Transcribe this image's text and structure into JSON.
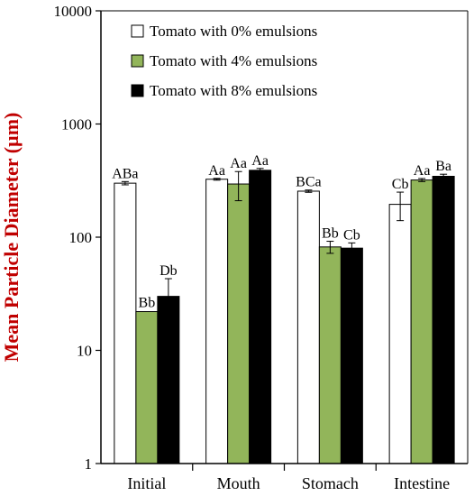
{
  "chart_data": {
    "type": "bar",
    "ylabel": "Mean Particle Diameter (µm)",
    "yscale": "log",
    "ylim": [
      1,
      10000
    ],
    "yticks": [
      "1",
      "10",
      "100",
      "1000",
      "10000"
    ],
    "categories": [
      "Initial",
      "Mouth",
      "Stomach",
      "Intestine"
    ],
    "legend_position": "top",
    "series": [
      {
        "name": "Tomato with 0% emulsions",
        "color": "#ffffff",
        "values": [
          300,
          325,
          255,
          195
        ],
        "errors": [
          10,
          6,
          6,
          55
        ],
        "labels": [
          "ABa",
          "Aa",
          "BCa",
          "Cb"
        ]
      },
      {
        "name": "Tomato with 4% emulsions",
        "color": "#92b55a",
        "values": [
          22,
          295,
          82,
          320
        ],
        "errors": [
          0,
          85,
          10,
          10
        ],
        "labels": [
          "Bb",
          "Aa",
          "Bb",
          "Aa"
        ]
      },
      {
        "name": "Tomato with 8% emulsions",
        "color": "#000000",
        "values": [
          30,
          390,
          80,
          345
        ],
        "errors": [
          13,
          15,
          9,
          15
        ],
        "labels": [
          "Db",
          "Aa",
          "Cb",
          "Ba"
        ]
      }
    ]
  },
  "colors": {
    "ylabel": "#c00000",
    "axis": "#000000"
  }
}
